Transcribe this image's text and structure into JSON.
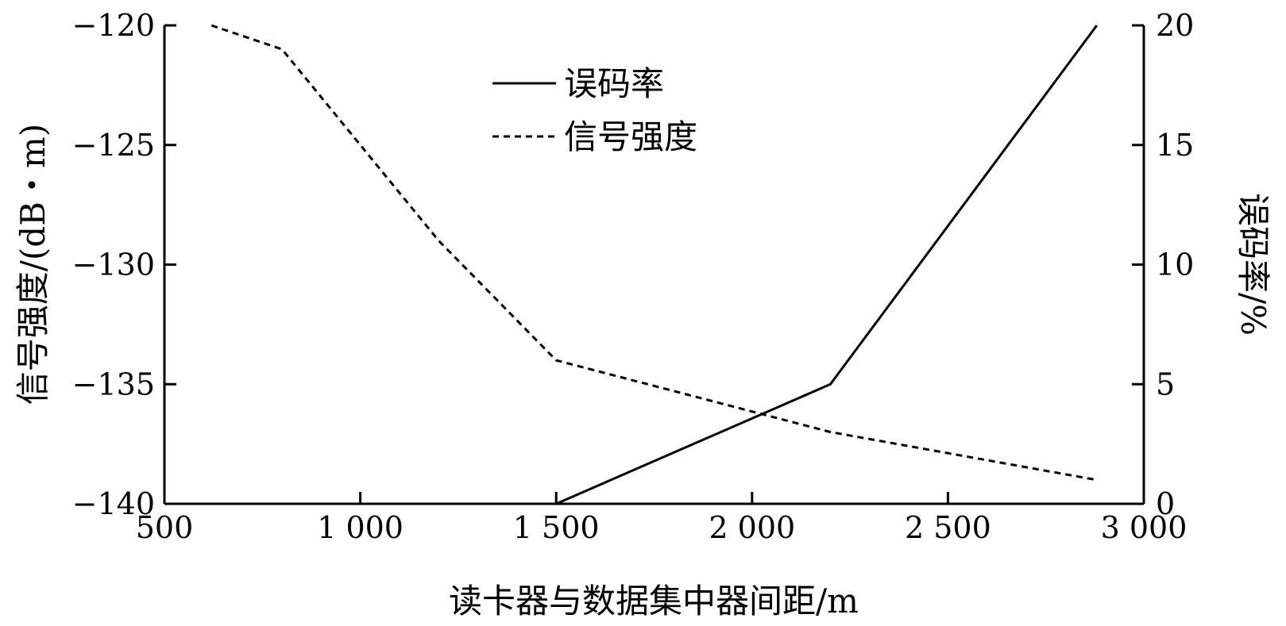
{
  "chart_data": {
    "type": "line",
    "x_axis": {
      "label": "读卡器与数据集中器间距/m",
      "range": [
        500,
        3000
      ],
      "ticks": [
        500,
        1000,
        1500,
        2000,
        2500,
        3000
      ],
      "tick_labels": [
        "500",
        "1 000",
        "1 500",
        "2 000",
        "2 500",
        "3 000"
      ]
    },
    "y_left": {
      "label": "信号强度/(dB・m)",
      "range": [
        -140,
        -120
      ],
      "ticks": [
        -140,
        -135,
        -130,
        -125,
        -120
      ],
      "tick_labels": [
        "−140",
        "−135",
        "−130",
        "−125",
        "−120"
      ]
    },
    "y_right": {
      "label": "误码率/%",
      "range": [
        0,
        20
      ],
      "ticks": [
        0,
        5,
        10,
        15,
        20
      ],
      "tick_labels": [
        "0",
        "5",
        "10",
        "15",
        "20"
      ]
    },
    "series": [
      {
        "name": "误码率",
        "axis": "right",
        "style": "solid",
        "color": "#000000",
        "x": [
          1500,
          2200,
          2880
        ],
        "y": [
          0,
          5,
          20
        ]
      },
      {
        "name": "信号强度",
        "axis": "left",
        "style": "dashed",
        "color": "#000000",
        "x": [
          620,
          800,
          1200,
          1500,
          2200,
          2880
        ],
        "y": [
          -120,
          -121,
          -129,
          -134,
          -137,
          -139
        ]
      }
    ],
    "legend": {
      "position": "top-center"
    },
    "grid": false
  }
}
